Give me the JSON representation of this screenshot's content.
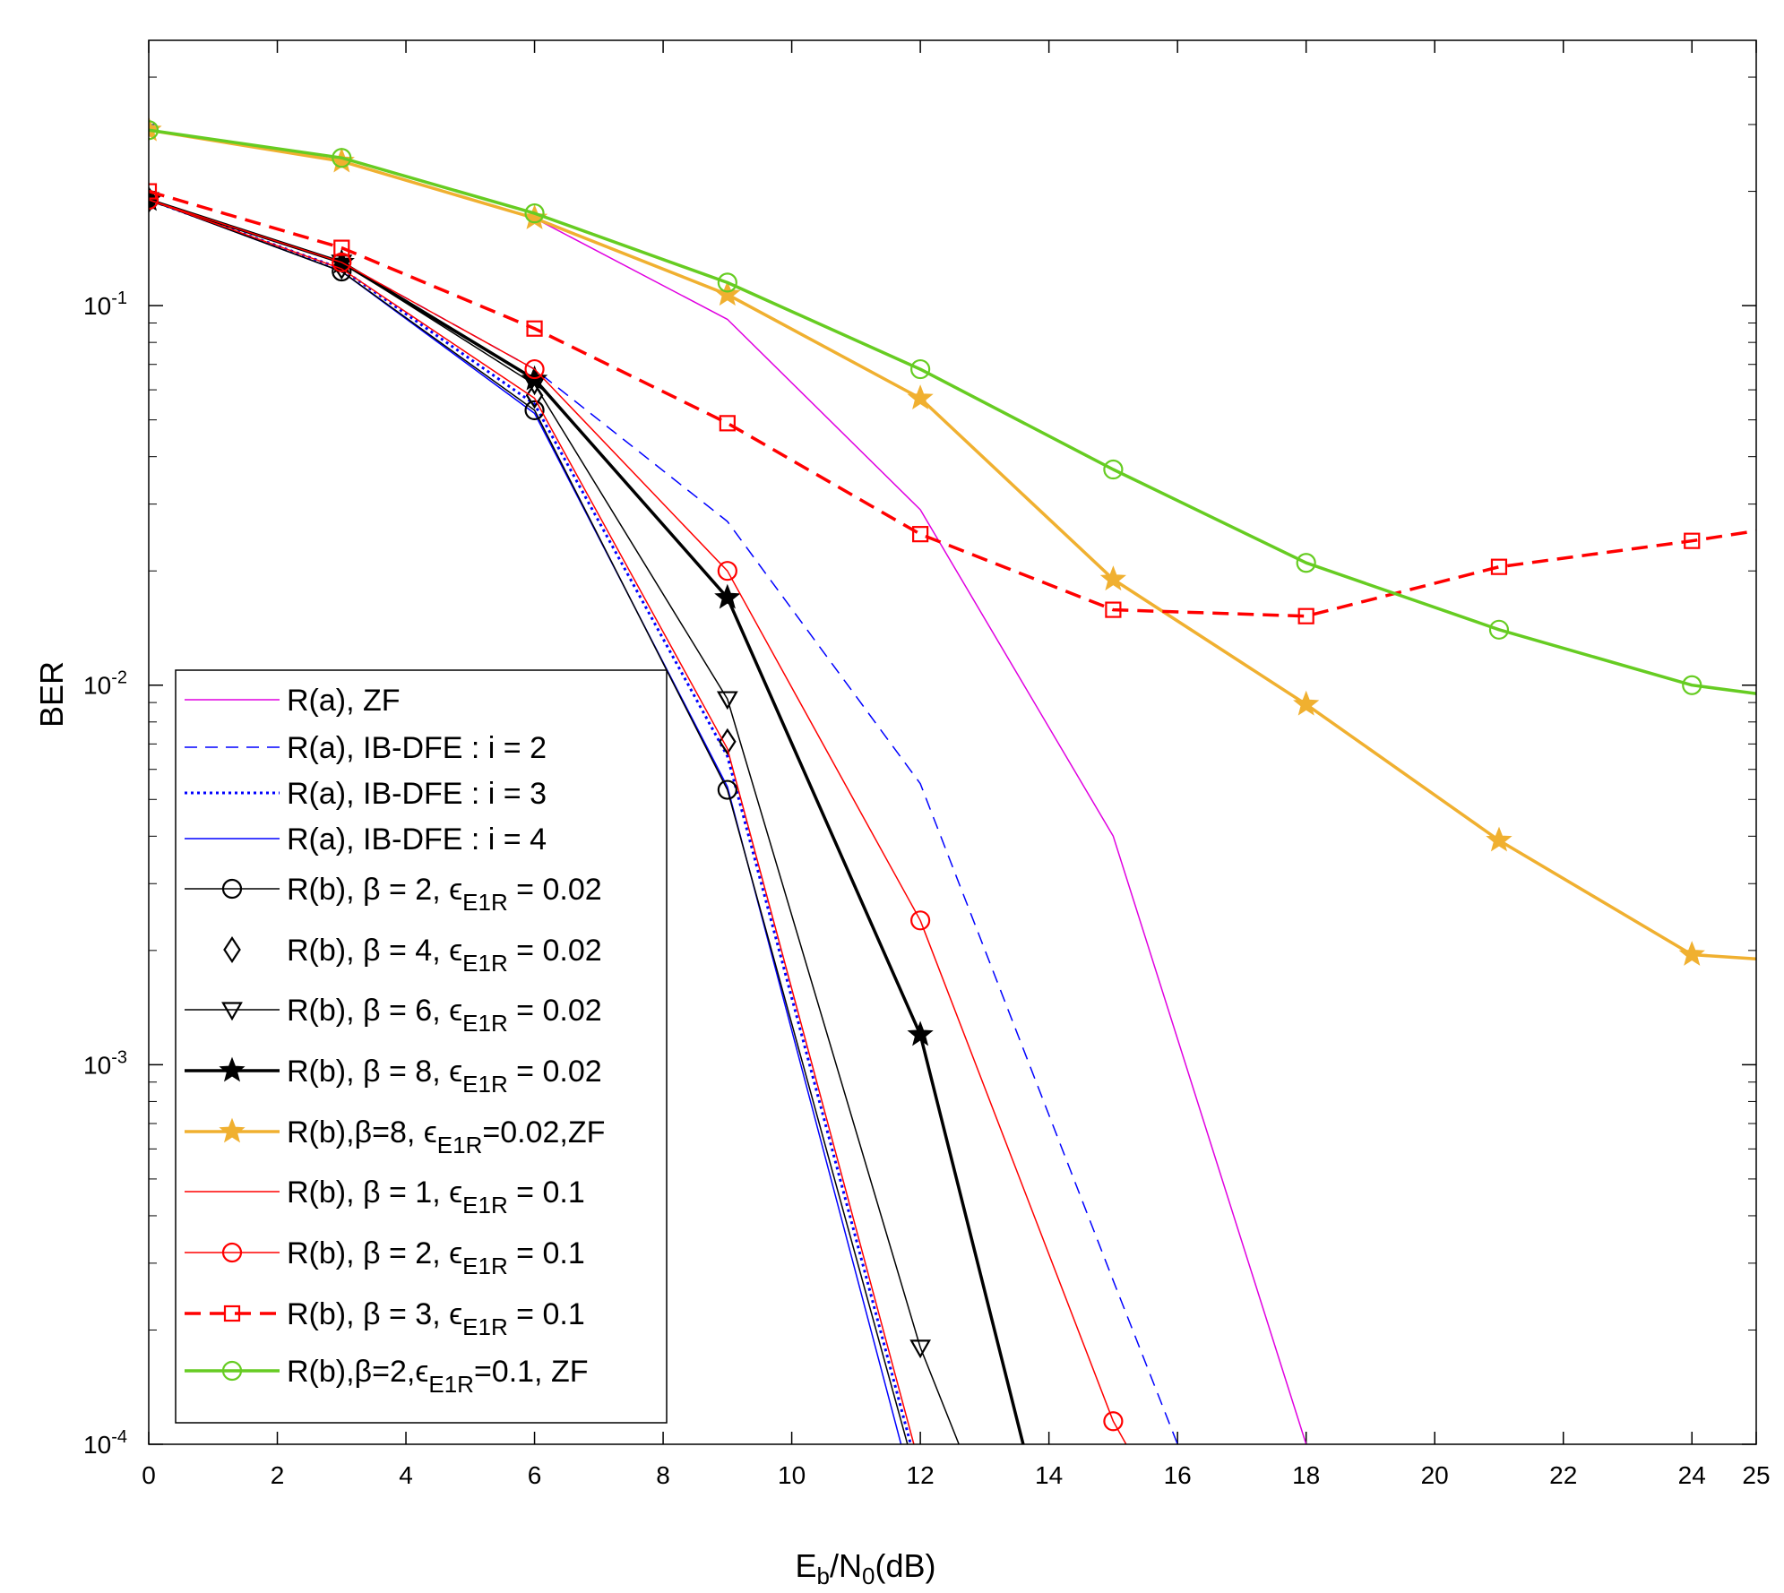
{
  "chart_data": {
    "type": "line",
    "title": "",
    "xlabel": "E_b/N_0(dB)",
    "xlabel_parts": {
      "e": "E",
      "b": "b",
      "slash": "/N",
      "zero": "0",
      "unit": "(dB)"
    },
    "ylabel": "BER",
    "xlim": [
      0,
      25
    ],
    "ylim": [
      0.0001,
      0.5
    ],
    "yscale": "log",
    "grid": false,
    "legend_position": "bottom-left",
    "x_ticks": [
      "0",
      "2",
      "4",
      "6",
      "8",
      "10",
      "12",
      "14",
      "16",
      "18",
      "20",
      "22",
      "24",
      "25"
    ],
    "y_ticks": [
      {
        "base": "10",
        "exp": "-1"
      },
      {
        "base": "10",
        "exp": "-2"
      },
      {
        "base": "10",
        "exp": "-3"
      },
      {
        "base": "10",
        "exp": "-4"
      }
    ],
    "series": [
      {
        "name": "R(a),  ZF",
        "legend": {
          "pre": "R(a),  ZF",
          "sub": "",
          "post": ""
        },
        "color": "#e000e0",
        "width": 1.5,
        "dash": "",
        "marker": "none",
        "x": [
          0,
          3,
          6,
          9,
          12,
          15,
          18
        ],
        "y": [
          0.29,
          0.24,
          0.17,
          0.092,
          0.029,
          0.004,
          0.0001
        ]
      },
      {
        "name": "R(a),  IB-DFE : i = 2",
        "legend": {
          "pre": "R(a),  IB-DFE : i = 2",
          "sub": "",
          "post": ""
        },
        "color": "#0000ff",
        "width": 1.5,
        "dash": "14,9",
        "marker": "none",
        "x": [
          0,
          3,
          6,
          9,
          12,
          15,
          16
        ],
        "y": [
          0.19,
          0.13,
          0.068,
          0.027,
          0.0055,
          0.00027,
          0.0001
        ]
      },
      {
        "name": "R(a),  IB-DFE : i = 3",
        "legend": {
          "pre": "R(a),  IB-DFE : i = 3",
          "sub": "",
          "post": ""
        },
        "color": "#0000ff",
        "width": 3,
        "dash": "3,4",
        "marker": "none",
        "x": [
          0,
          3,
          6,
          9,
          11.85
        ],
        "y": [
          0.19,
          0.125,
          0.055,
          0.0065,
          0.0001
        ]
      },
      {
        "name": "R(a),  IB-DFE : i = 4",
        "legend": {
          "pre": "R(a),  IB-DFE : i = 4",
          "sub": "",
          "post": ""
        },
        "color": "#0000ff",
        "width": 1.5,
        "dash": "",
        "marker": "none",
        "x": [
          0,
          3,
          6,
          9,
          11.7
        ],
        "y": [
          0.19,
          0.123,
          0.052,
          0.0054,
          0.0001
        ]
      },
      {
        "name": "R(b), β = 2, ε_E1R = 0.02",
        "legend": {
          "pre": "R(b), β = 2, ϵ",
          "sub": "E1R",
          "post": " = 0.02"
        },
        "color": "#000000",
        "width": 1.5,
        "dash": "",
        "marker": "circle",
        "x": [
          0,
          3,
          6,
          9,
          11.8
        ],
        "y": [
          0.19,
          0.123,
          0.053,
          0.0053,
          0.0001
        ]
      },
      {
        "name": "R(b), β = 4, ε_E1R = 0.02",
        "legend": {
          "pre": "R(b), β = 4, ϵ",
          "sub": "E1R",
          "post": " = 0.02"
        },
        "color": "#000000",
        "width": 1.5,
        "dash": "",
        "marker": "diamond",
        "line_visible": false,
        "x": [
          0,
          3,
          6,
          9
        ],
        "y": [
          0.19,
          0.127,
          0.058,
          0.0071
        ]
      },
      {
        "name": "R(b), β = 6, ε_E1R = 0.02",
        "legend": {
          "pre": "R(b), β = 6, ϵ",
          "sub": "E1R",
          "post": " = 0.02"
        },
        "color": "#000000",
        "width": 1.5,
        "dash": "",
        "marker": "triangle-down",
        "x": [
          0,
          3,
          6,
          9,
          12,
          12.6
        ],
        "y": [
          0.19,
          0.13,
          0.062,
          0.0092,
          0.00018,
          0.0001
        ]
      },
      {
        "name": "R(b), β = 8, ε_E1R = 0.02",
        "legend": {
          "pre": "R(b), β = 8, ϵ",
          "sub": "E1R",
          "post": " = 0.02"
        },
        "color": "#000000",
        "width": 3.5,
        "dash": "",
        "marker": "star",
        "x": [
          0,
          3,
          6,
          9,
          12,
          13.6
        ],
        "y": [
          0.19,
          0.13,
          0.064,
          0.017,
          0.0012,
          0.0001
        ]
      },
      {
        "name": "R(b),β=8, ε_E1R=0.02,ZF",
        "legend": {
          "pre": "R(b),β=8, ϵ",
          "sub": "E1R",
          "post": "=0.02,ZF"
        },
        "color": "#f0b030",
        "width": 3.5,
        "dash": "",
        "marker": "star",
        "x": [
          0,
          3,
          6,
          9,
          12,
          15,
          18,
          21,
          24,
          25
        ],
        "y": [
          0.29,
          0.24,
          0.17,
          0.107,
          0.057,
          0.019,
          0.0089,
          0.0039,
          0.00195,
          0.0019
        ]
      },
      {
        "name": "R(b), β = 1, ε_E1R = 0.1",
        "legend": {
          "pre": "R(b), β = 1, ϵ",
          "sub": "E1R",
          "post": " = 0.1"
        },
        "color": "#ff0000",
        "width": 1.5,
        "dash": "",
        "marker": "none",
        "x": [
          0,
          3,
          6,
          9,
          11.9
        ],
        "y": [
          0.19,
          0.125,
          0.057,
          0.0068,
          0.0001
        ]
      },
      {
        "name": "R(b), β = 2, ε_E1R = 0.1",
        "legend": {
          "pre": "R(b), β = 2, ϵ",
          "sub": "E1R",
          "post": " = 0.1"
        },
        "color": "#ff0000",
        "width": 1.5,
        "dash": "",
        "marker": "circle",
        "x": [
          0,
          3,
          6,
          9,
          12,
          15,
          15.2
        ],
        "y": [
          0.19,
          0.13,
          0.068,
          0.02,
          0.0024,
          0.000115,
          0.0001
        ]
      },
      {
        "name": "R(b), β = 3, ε_E1R = 0.1",
        "legend": {
          "pre": "R(b), β = 3, ϵ",
          "sub": "E1R",
          "post": " = 0.1"
        },
        "color": "#ff0000",
        "width": 3.5,
        "dash": "18,10",
        "marker": "square",
        "x": [
          0,
          3,
          6,
          9,
          12,
          15,
          18,
          21,
          24,
          25
        ],
        "y": [
          0.2,
          0.142,
          0.087,
          0.049,
          0.025,
          0.0158,
          0.0152,
          0.0205,
          0.024,
          0.0255
        ]
      },
      {
        "name": "R(b),β=2,ε_E1R=0.1, ZF",
        "legend": {
          "pre": "R(b),β=2,ϵ",
          "sub": "E1R",
          "post": "=0.1, ZF"
        },
        "color": "#66cc22",
        "width": 3.5,
        "dash": "",
        "marker": "circle",
        "x": [
          0,
          3,
          6,
          9,
          12,
          15,
          18,
          21,
          24,
          25
        ],
        "y": [
          0.29,
          0.245,
          0.175,
          0.115,
          0.068,
          0.037,
          0.021,
          0.014,
          0.01,
          0.0095
        ]
      }
    ]
  }
}
